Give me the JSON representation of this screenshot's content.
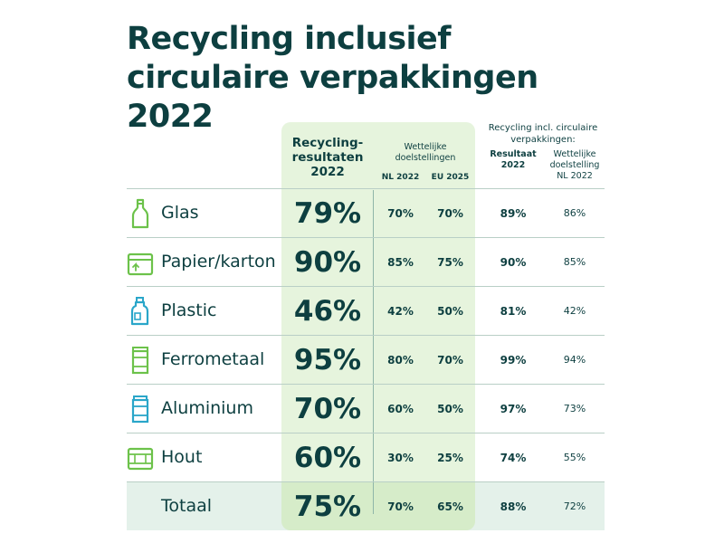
{
  "title": {
    "line1": "Recycling inclusief",
    "line2": "circulaire verpakkingen",
    "line3": "2022"
  },
  "headers": {
    "main": "Recycling-resultaten 2022",
    "wettelijk": "Wettelijke doelstellingen",
    "nl_2022": "NL 2022",
    "eu_2025": "EU 2025",
    "circ": "Recycling incl. circulaire verpakkingen:",
    "resultaat": "Resultaat 2022",
    "wettelijk_nl": "Wettelijke doelstelling NL 2022"
  },
  "rows": [
    {
      "label": "Glas",
      "icon": "bottle-icon",
      "result": "79%",
      "nl": "70%",
      "eu": "70%",
      "circ_result": "89%",
      "circ_target": "86%"
    },
    {
      "label": "Papier/karton",
      "icon": "box-icon",
      "result": "90%",
      "nl": "85%",
      "eu": "75%",
      "circ_result": "90%",
      "circ_target": "85%"
    },
    {
      "label": "Plastic",
      "icon": "plastic-bottle-icon",
      "result": "46%",
      "nl": "42%",
      "eu": "50%",
      "circ_result": "81%",
      "circ_target": "42%"
    },
    {
      "label": "Ferrometaal",
      "icon": "can-icon",
      "result": "95%",
      "nl": "80%",
      "eu": "70%",
      "circ_result": "99%",
      "circ_target": "94%"
    },
    {
      "label": "Aluminium",
      "icon": "aluminium-can-icon",
      "result": "70%",
      "nl": "60%",
      "eu": "50%",
      "circ_result": "97%",
      "circ_target": "73%"
    },
    {
      "label": "Hout",
      "icon": "pallet-icon",
      "result": "60%",
      "nl": "30%",
      "eu": "25%",
      "circ_result": "74%",
      "circ_target": "55%"
    }
  ],
  "total": {
    "label": "Totaal",
    "result": "75%",
    "nl": "70%",
    "eu": "65%",
    "circ_result": "88%",
    "circ_target": "72%"
  },
  "colors": {
    "title": "#0d3f40",
    "highlight_column": "#e6f4dd",
    "total_row": "#e4f1ea",
    "icon_green": "#6cc24a",
    "icon_blue": "#2aa6c9"
  }
}
